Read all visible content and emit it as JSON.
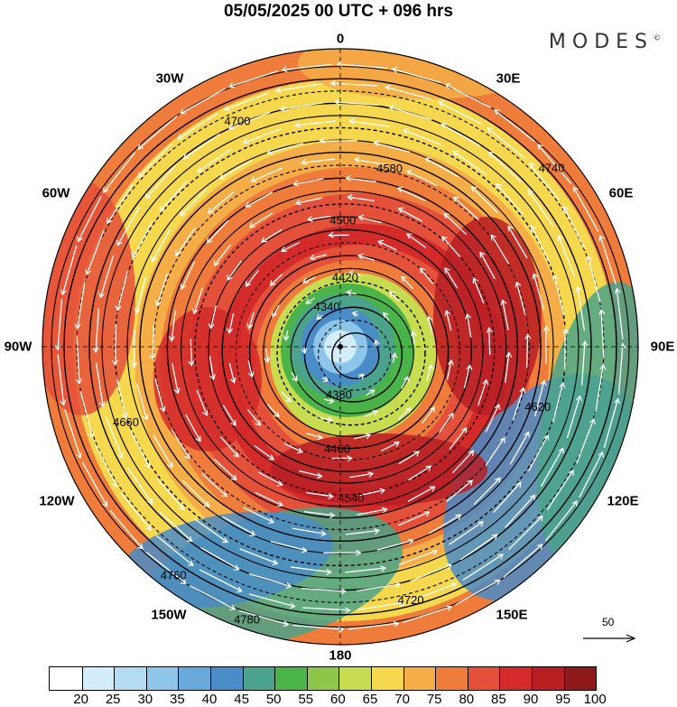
{
  "header": {
    "title": "05/05/2025  00 UTC  + 096 hrs",
    "brand": "MODES"
  },
  "map": {
    "longitude_labels": [
      {
        "text": "0",
        "name": "lon-label-0"
      },
      {
        "text": "30E",
        "name": "lon-label-30e"
      },
      {
        "text": "60E",
        "name": "lon-label-60e"
      },
      {
        "text": "90E",
        "name": "lon-label-90e"
      },
      {
        "text": "120E",
        "name": "lon-label-120e"
      },
      {
        "text": "150E",
        "name": "lon-label-150e"
      },
      {
        "text": "180",
        "name": "lon-label-180"
      },
      {
        "text": "150W",
        "name": "lon-label-150w"
      },
      {
        "text": "120W",
        "name": "lon-label-120w"
      },
      {
        "text": "90W",
        "name": "lon-label-90w"
      },
      {
        "text": "60W",
        "name": "lon-label-60w"
      },
      {
        "text": "30W",
        "name": "lon-label-30w"
      }
    ],
    "contour_labels": [
      "4340",
      "4380",
      "4420",
      "4460",
      "4500",
      "4540",
      "4580",
      "4620",
      "4660",
      "4700",
      "4720",
      "4740",
      "4760",
      "4780"
    ],
    "reference_vector": {
      "label": "50"
    }
  },
  "colorbar": {
    "ticks": [
      "20",
      "25",
      "30",
      "35",
      "40",
      "45",
      "50",
      "55",
      "60",
      "65",
      "70",
      "75",
      "80",
      "85",
      "90",
      "95",
      "100"
    ],
    "colors": [
      "#ffffff",
      "#d3eefa",
      "#b3dcf4",
      "#8ec5ea",
      "#6aa9dc",
      "#4a8cc8",
      "#4aa38a",
      "#4ab34a",
      "#8cc64a",
      "#c8dc50",
      "#f5d84e",
      "#f5ad47",
      "#ef7c3a",
      "#e5503a",
      "#d42a2a",
      "#b81f24",
      "#8e1a1a"
    ]
  }
}
